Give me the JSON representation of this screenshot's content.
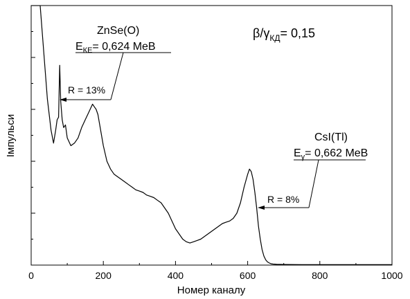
{
  "chart_data": {
    "type": "line",
    "xlabel": "Номер каналу",
    "ylabel": "Імпульси",
    "xlim": [
      0,
      1000
    ],
    "ylim": [
      0,
      100
    ],
    "x_ticks": [
      0,
      200,
      400,
      600,
      800,
      1000
    ],
    "x_tick_labels": [
      "0",
      "200",
      "400",
      "600",
      "800",
      "1000"
    ],
    "grid": false,
    "legend": "none",
    "ratio_label": {
      "main": "β/γ",
      "sub": "КД",
      "rest": "= 0,15"
    },
    "zns_label": {
      "title": "ZnSe(O)",
      "energy_main": "E",
      "energy_sub": "КЕ",
      "energy_rest": "= 0,624 MeВ",
      "resolution": "R = 13%"
    },
    "csi_label": {
      "title": "CsI(Tl)",
      "energy_main": "E",
      "energy_sub": "γ",
      "energy_rest": "= 0,662 MeВ",
      "resolution": "R = 8%"
    },
    "series": [
      {
        "x": [
          0,
          15,
          25,
          35,
          45,
          55,
          62,
          68,
          72,
          76,
          79,
          82,
          86,
          90,
          95,
          100,
          110,
          120,
          130,
          140,
          150,
          160,
          170,
          175,
          180,
          185,
          190,
          200,
          210,
          220,
          230,
          240,
          250,
          260,
          270,
          280,
          290,
          300,
          310,
          320,
          330,
          340,
          350,
          360,
          370,
          380,
          390,
          400,
          410,
          420,
          430,
          440,
          450,
          460,
          470,
          480,
          490,
          500,
          510,
          520,
          530,
          540,
          550,
          560,
          570,
          580,
          590,
          600,
          605,
          610,
          615,
          620,
          625,
          630,
          635,
          640,
          645,
          650,
          655,
          660,
          665,
          670,
          680,
          700,
          750,
          800,
          900,
          1000
        ],
        "y": [
          100,
          100,
          100,
          82,
          64,
          52,
          47,
          52,
          56,
          57,
          77,
          63,
          56,
          53,
          54,
          49,
          46,
          47,
          49,
          53,
          56,
          59,
          62,
          61,
          60,
          58,
          54,
          46,
          40,
          37,
          35,
          34,
          33,
          32,
          31,
          30,
          29,
          28.5,
          28,
          27,
          26.5,
          26,
          25,
          24,
          22,
          20,
          17,
          14,
          12,
          10,
          9,
          8.5,
          9,
          9.5,
          10,
          11,
          12,
          13,
          14,
          15,
          16,
          16.5,
          17,
          18,
          20,
          24,
          30,
          35,
          37,
          36,
          33,
          28,
          22,
          15,
          10,
          6,
          3.5,
          2,
          1.2,
          0.8,
          0.5,
          0.4,
          0.3,
          0.25,
          0.2,
          0.2,
          0.2,
          0.2
        ]
      }
    ]
  }
}
